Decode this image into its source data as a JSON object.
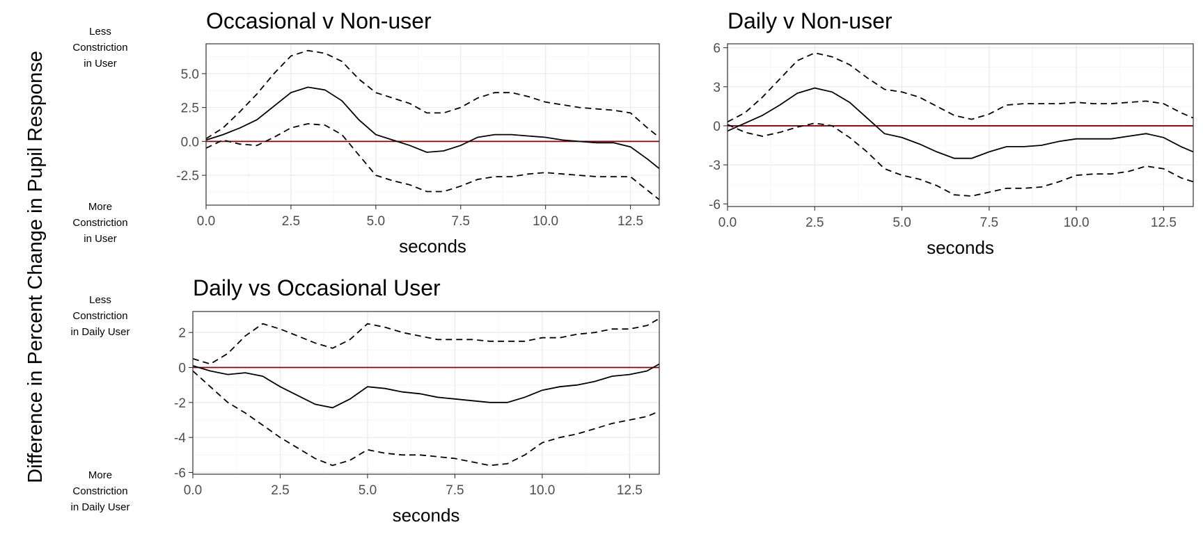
{
  "y_axis_title": "Difference in Percent Change in Pupil Response",
  "side_labels": [
    {
      "lines": [
        "Less",
        "Constriction",
        "in User"
      ]
    },
    {
      "lines": [
        "More",
        "Constriction",
        "in User"
      ]
    },
    {
      "lines": [
        "Less",
        "Constriction",
        "in Daily User"
      ]
    },
    {
      "lines": [
        "More",
        "Constriction",
        "in Daily User"
      ]
    }
  ],
  "colors": {
    "zero_line": "#8b0000",
    "lines": "#000000",
    "panel_border": "#333333",
    "grid": "#ebebeb"
  },
  "chart_data": [
    {
      "type": "line",
      "title": "Occasional v Non-user",
      "xlabel": "seconds",
      "ylabel": "",
      "xlim": [
        0,
        13.35
      ],
      "ylim": [
        -4.7,
        7.2
      ],
      "xticks": [
        0,
        2.5,
        5,
        7.5,
        10,
        12.5
      ],
      "xtick_labels": [
        "0.0",
        "2.5",
        "5.0",
        "7.5",
        "10.0",
        "12.5"
      ],
      "yticks": [
        -2.5,
        0,
        2.5,
        5
      ],
      "ytick_labels": [
        "-2.5",
        "0.0",
        "2.5",
        "5.0"
      ],
      "reference_line": 0,
      "series": [
        {
          "style": "solid",
          "x": [
            0,
            0.5,
            1,
            1.5,
            2,
            2.5,
            3,
            3.5,
            4,
            4.5,
            5,
            5.5,
            6,
            6.5,
            7,
            7.5,
            8,
            8.5,
            9,
            9.5,
            10,
            10.5,
            11,
            11.5,
            12,
            12.5,
            13,
            13.35
          ],
          "y": [
            0.1,
            0.5,
            1.0,
            1.6,
            2.6,
            3.6,
            4.0,
            3.8,
            3.0,
            1.6,
            0.5,
            0.1,
            -0.3,
            -0.8,
            -0.7,
            -0.3,
            0.3,
            0.5,
            0.5,
            0.4,
            0.3,
            0.1,
            0,
            -0.1,
            -0.1,
            -0.4,
            -1.3,
            -2.0
          ]
        },
        {
          "style": "dashed",
          "x": [
            0,
            0.5,
            1,
            1.5,
            2,
            2.5,
            3,
            3.5,
            4,
            4.5,
            5,
            5.5,
            6,
            6.5,
            7,
            7.5,
            8,
            8.5,
            9,
            9.5,
            10,
            10.5,
            11,
            11.5,
            12,
            12.5,
            13,
            13.35
          ],
          "y": [
            0.2,
            1.0,
            2.2,
            3.5,
            5.0,
            6.3,
            6.7,
            6.5,
            5.9,
            4.6,
            3.6,
            3.2,
            2.8,
            2.1,
            2.1,
            2.5,
            3.2,
            3.6,
            3.6,
            3.3,
            2.9,
            2.7,
            2.5,
            2.4,
            2.3,
            2.1,
            1.0,
            0.3
          ]
        },
        {
          "style": "dashed",
          "x": [
            0,
            0.5,
            1,
            1.5,
            2,
            2.5,
            3,
            3.5,
            4,
            4.5,
            5,
            5.5,
            6,
            6.5,
            7,
            7.5,
            8,
            8.5,
            9,
            9.5,
            10,
            10.5,
            11,
            11.5,
            12,
            12.5,
            13,
            13.35
          ],
          "y": [
            -0.5,
            0.1,
            -0.2,
            -0.3,
            0.3,
            1.0,
            1.3,
            1.2,
            0.5,
            -1.0,
            -2.5,
            -2.9,
            -3.2,
            -3.7,
            -3.7,
            -3.3,
            -2.8,
            -2.6,
            -2.6,
            -2.4,
            -2.3,
            -2.4,
            -2.5,
            -2.6,
            -2.6,
            -2.6,
            -3.6,
            -4.3
          ]
        }
      ]
    },
    {
      "type": "line",
      "title": "Daily v Non-user",
      "xlabel": "seconds",
      "ylabel": "",
      "xlim": [
        0,
        13.35
      ],
      "ylim": [
        -6.2,
        6.3
      ],
      "xticks": [
        0,
        2.5,
        5,
        7.5,
        10,
        12.5
      ],
      "xtick_labels": [
        "0.0",
        "2.5",
        "5.0",
        "7.5",
        "10.0",
        "12.5"
      ],
      "yticks": [
        -6,
        -3,
        0,
        3,
        6
      ],
      "ytick_labels": [
        "-6",
        "-3",
        "0",
        "3",
        "6"
      ],
      "reference_line": 0,
      "series": [
        {
          "style": "solid",
          "x": [
            0,
            0.5,
            1,
            1.5,
            2,
            2.5,
            3,
            3.5,
            4,
            4.5,
            5,
            5.5,
            6,
            6.5,
            7,
            7.5,
            8,
            8.5,
            9,
            9.5,
            10,
            10.5,
            11,
            11.5,
            12,
            12.5,
            13,
            13.35
          ],
          "y": [
            -0.4,
            0.2,
            0.8,
            1.6,
            2.5,
            2.9,
            2.6,
            1.8,
            0.6,
            -0.6,
            -0.9,
            -1.4,
            -2.0,
            -2.5,
            -2.5,
            -2.0,
            -1.6,
            -1.6,
            -1.5,
            -1.2,
            -1.0,
            -1.0,
            -1.0,
            -0.8,
            -0.6,
            -0.9,
            -1.6,
            -2.0
          ]
        },
        {
          "style": "dashed",
          "x": [
            0,
            0.5,
            1,
            1.5,
            2,
            2.5,
            3,
            3.5,
            4,
            4.5,
            5,
            5.5,
            6,
            6.5,
            7,
            7.5,
            8,
            8.5,
            9,
            9.5,
            10,
            10.5,
            11,
            11.5,
            12,
            12.5,
            13,
            13.35
          ],
          "y": [
            0.3,
            1.0,
            2.2,
            3.6,
            5.0,
            5.6,
            5.3,
            4.7,
            3.7,
            2.8,
            2.6,
            2.2,
            1.5,
            0.8,
            0.5,
            0.9,
            1.6,
            1.7,
            1.7,
            1.7,
            1.8,
            1.7,
            1.7,
            1.8,
            1.9,
            1.7,
            1.0,
            0.6
          ]
        },
        {
          "style": "dashed",
          "x": [
            0,
            0.5,
            1,
            1.5,
            2,
            2.5,
            3,
            3.5,
            4,
            4.5,
            5,
            5.5,
            6,
            6.5,
            7,
            7.5,
            8,
            8.5,
            9,
            9.5,
            10,
            10.5,
            11,
            11.5,
            12,
            12.5,
            13,
            13.35
          ],
          "y": [
            0.1,
            -0.5,
            -0.8,
            -0.5,
            -0.1,
            0.2,
            0,
            -0.9,
            -2.0,
            -3.3,
            -3.8,
            -4.1,
            -4.6,
            -5.3,
            -5.4,
            -5.1,
            -4.8,
            -4.8,
            -4.7,
            -4.3,
            -3.8,
            -3.7,
            -3.7,
            -3.5,
            -3.1,
            -3.3,
            -4.0,
            -4.3
          ]
        }
      ]
    },
    {
      "type": "line",
      "title": "Daily vs Occasional User",
      "xlabel": "seconds",
      "ylabel": "",
      "xlim": [
        0,
        13.35
      ],
      "ylim": [
        -6.1,
        3.2
      ],
      "xticks": [
        0,
        2.5,
        5,
        7.5,
        10,
        12.5
      ],
      "xtick_labels": [
        "0.0",
        "2.5",
        "5.0",
        "7.5",
        "10.0",
        "12.5"
      ],
      "yticks": [
        -6,
        -4,
        -2,
        0,
        2
      ],
      "ytick_labels": [
        "-6",
        "-4",
        "-2",
        "0",
        "2"
      ],
      "reference_line": 0,
      "series": [
        {
          "style": "solid",
          "x": [
            0,
            0.5,
            1,
            1.5,
            2,
            2.5,
            3,
            3.5,
            4,
            4.5,
            5,
            5.5,
            6,
            6.5,
            7,
            7.5,
            8,
            8.5,
            9,
            9.5,
            10,
            10.5,
            11,
            11.5,
            12,
            12.5,
            13,
            13.35
          ],
          "y": [
            0.1,
            -0.2,
            -0.4,
            -0.3,
            -0.5,
            -1.1,
            -1.6,
            -2.1,
            -2.3,
            -1.8,
            -1.1,
            -1.2,
            -1.4,
            -1.5,
            -1.7,
            -1.8,
            -1.9,
            -2.0,
            -2.0,
            -1.7,
            -1.3,
            -1.1,
            -1.0,
            -0.8,
            -0.5,
            -0.4,
            -0.2,
            0.2
          ]
        },
        {
          "style": "dashed",
          "x": [
            0,
            0.5,
            1,
            1.5,
            2,
            2.5,
            3,
            3.5,
            4,
            4.5,
            5,
            5.5,
            6,
            6.5,
            7,
            7.5,
            8,
            8.5,
            9,
            9.5,
            10,
            10.5,
            11,
            11.5,
            12,
            12.5,
            13,
            13.35
          ],
          "y": [
            0.5,
            0.2,
            0.8,
            1.8,
            2.5,
            2.2,
            1.8,
            1.4,
            1.1,
            1.6,
            2.5,
            2.3,
            2.0,
            1.8,
            1.6,
            1.6,
            1.6,
            1.5,
            1.5,
            1.5,
            1.7,
            1.7,
            1.9,
            2.0,
            2.2,
            2.2,
            2.4,
            2.8
          ]
        },
        {
          "style": "dashed",
          "x": [
            0,
            0.5,
            1,
            1.5,
            2,
            2.5,
            3,
            3.5,
            4,
            4.5,
            5,
            5.5,
            6,
            6.5,
            7,
            7.5,
            8,
            8.5,
            9,
            9.5,
            10,
            10.5,
            11,
            11.5,
            12,
            12.5,
            13,
            13.35
          ],
          "y": [
            -0.2,
            -1.1,
            -2.0,
            -2.6,
            -3.3,
            -4.0,
            -4.6,
            -5.2,
            -5.6,
            -5.3,
            -4.7,
            -4.9,
            -5.0,
            -5.0,
            -5.1,
            -5.2,
            -5.4,
            -5.6,
            -5.5,
            -5.0,
            -4.3,
            -4.0,
            -3.8,
            -3.5,
            -3.2,
            -3.0,
            -2.8,
            -2.5
          ]
        }
      ]
    }
  ]
}
